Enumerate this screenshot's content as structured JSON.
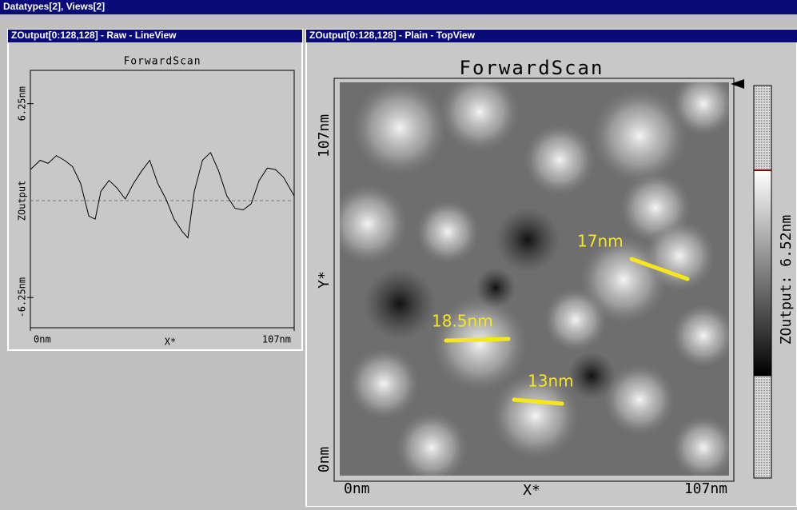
{
  "window": {
    "title": "Datatypes[2], Views[2]"
  },
  "line_view": {
    "title": "ZOutput[0:128,128] - Raw - LineView",
    "chart_data": {
      "type": "line",
      "title": "ForwardScan",
      "x_label": "X*",
      "y_label": "ZOutput",
      "color": "#000000",
      "x": [
        0,
        4.0,
        7.2,
        10.5,
        13.8,
        17.1,
        20.4,
        23.7,
        26.3,
        28.6,
        31.9,
        35.2,
        38.5,
        41.8,
        45.1,
        48.4,
        51.7,
        55.0,
        58.3,
        61.6,
        63.9,
        66.5,
        69.8,
        73.1,
        76.4,
        79.7,
        83.0,
        86.3,
        89.6,
        92.8,
        96.1,
        99.4,
        102.7,
        107
      ],
      "values": [
        2.0,
        2.6,
        2.4,
        2.9,
        2.6,
        2.2,
        1.1,
        -1.0,
        -1.2,
        0.6,
        1.3,
        0.8,
        0.1,
        1.1,
        1.9,
        2.6,
        1.1,
        0.1,
        -1.2,
        -2.0,
        -2.4,
        0.6,
        2.6,
        3.1,
        1.9,
        0.3,
        -0.5,
        -0.6,
        -0.2,
        1.3,
        2.1,
        2.0,
        1.5,
        0.3
      ],
      "xlim": [
        0,
        107
      ],
      "ylim": [
        -8.2,
        8.4
      ],
      "xticks": [
        {
          "value": 0,
          "label": "0nm"
        },
        {
          "value": 107,
          "label": "107nm"
        }
      ],
      "yticks": [
        {
          "value": 6.25,
          "label": "6.25nm"
        },
        {
          "value": -6.25,
          "label": "-6.25nm"
        }
      ]
    }
  },
  "top_view": {
    "title": "ZOutput[0:128,128] - Plain - TopView",
    "plot_title": "ForwardScan",
    "x_label": "X*",
    "y_label": "Y*",
    "x_ticks": [
      "0nm",
      "107nm"
    ],
    "y_ticks": [
      "0nm",
      "107nm"
    ],
    "colorbar_label": "ZOutput: 6.52nm",
    "annotations": [
      "17nm",
      "18.5nm",
      "13nm"
    ]
  }
}
